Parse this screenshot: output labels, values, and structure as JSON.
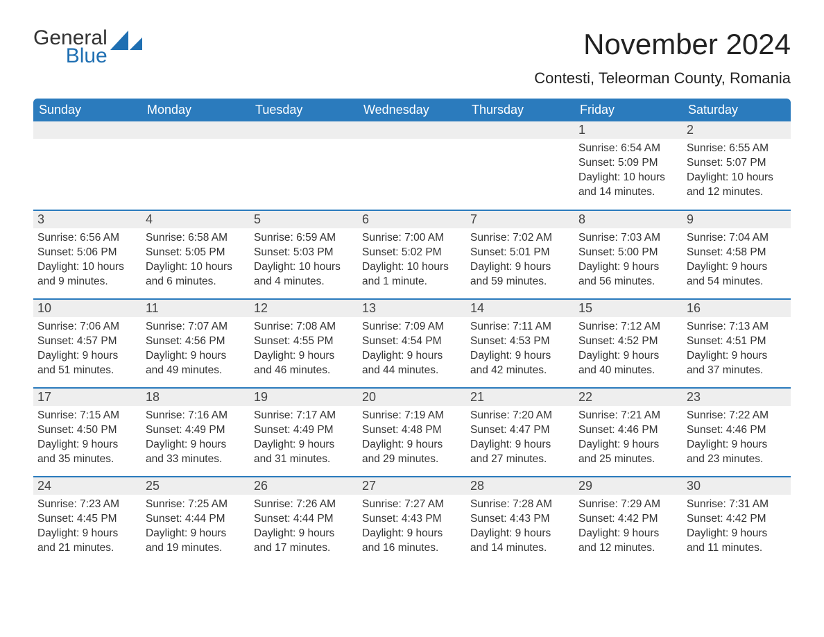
{
  "brand": {
    "general": "General",
    "blue": "Blue",
    "sail_color": "#1f6fb2"
  },
  "header": {
    "month_title": "November 2024",
    "location": "Contesti, Teleorman County, Romania"
  },
  "calendar": {
    "header_bg": "#2b7bbd",
    "header_fg": "#ffffff",
    "rule_color": "#2b7bbd",
    "daynum_bg": "#eeeeee",
    "text_color": "#333333",
    "font_family": "Arial",
    "columns": [
      "Sunday",
      "Monday",
      "Tuesday",
      "Wednesday",
      "Thursday",
      "Friday",
      "Saturday"
    ],
    "weeks": [
      [
        null,
        null,
        null,
        null,
        null,
        {
          "n": "1",
          "sunrise": "Sunrise: 6:54 AM",
          "sunset": "Sunset: 5:09 PM",
          "day1": "Daylight: 10 hours",
          "day2": "and 14 minutes."
        },
        {
          "n": "2",
          "sunrise": "Sunrise: 6:55 AM",
          "sunset": "Sunset: 5:07 PM",
          "day1": "Daylight: 10 hours",
          "day2": "and 12 minutes."
        }
      ],
      [
        {
          "n": "3",
          "sunrise": "Sunrise: 6:56 AM",
          "sunset": "Sunset: 5:06 PM",
          "day1": "Daylight: 10 hours",
          "day2": "and 9 minutes."
        },
        {
          "n": "4",
          "sunrise": "Sunrise: 6:58 AM",
          "sunset": "Sunset: 5:05 PM",
          "day1": "Daylight: 10 hours",
          "day2": "and 6 minutes."
        },
        {
          "n": "5",
          "sunrise": "Sunrise: 6:59 AM",
          "sunset": "Sunset: 5:03 PM",
          "day1": "Daylight: 10 hours",
          "day2": "and 4 minutes."
        },
        {
          "n": "6",
          "sunrise": "Sunrise: 7:00 AM",
          "sunset": "Sunset: 5:02 PM",
          "day1": "Daylight: 10 hours",
          "day2": "and 1 minute."
        },
        {
          "n": "7",
          "sunrise": "Sunrise: 7:02 AM",
          "sunset": "Sunset: 5:01 PM",
          "day1": "Daylight: 9 hours",
          "day2": "and 59 minutes."
        },
        {
          "n": "8",
          "sunrise": "Sunrise: 7:03 AM",
          "sunset": "Sunset: 5:00 PM",
          "day1": "Daylight: 9 hours",
          "day2": "and 56 minutes."
        },
        {
          "n": "9",
          "sunrise": "Sunrise: 7:04 AM",
          "sunset": "Sunset: 4:58 PM",
          "day1": "Daylight: 9 hours",
          "day2": "and 54 minutes."
        }
      ],
      [
        {
          "n": "10",
          "sunrise": "Sunrise: 7:06 AM",
          "sunset": "Sunset: 4:57 PM",
          "day1": "Daylight: 9 hours",
          "day2": "and 51 minutes."
        },
        {
          "n": "11",
          "sunrise": "Sunrise: 7:07 AM",
          "sunset": "Sunset: 4:56 PM",
          "day1": "Daylight: 9 hours",
          "day2": "and 49 minutes."
        },
        {
          "n": "12",
          "sunrise": "Sunrise: 7:08 AM",
          "sunset": "Sunset: 4:55 PM",
          "day1": "Daylight: 9 hours",
          "day2": "and 46 minutes."
        },
        {
          "n": "13",
          "sunrise": "Sunrise: 7:09 AM",
          "sunset": "Sunset: 4:54 PM",
          "day1": "Daylight: 9 hours",
          "day2": "and 44 minutes."
        },
        {
          "n": "14",
          "sunrise": "Sunrise: 7:11 AM",
          "sunset": "Sunset: 4:53 PM",
          "day1": "Daylight: 9 hours",
          "day2": "and 42 minutes."
        },
        {
          "n": "15",
          "sunrise": "Sunrise: 7:12 AM",
          "sunset": "Sunset: 4:52 PM",
          "day1": "Daylight: 9 hours",
          "day2": "and 40 minutes."
        },
        {
          "n": "16",
          "sunrise": "Sunrise: 7:13 AM",
          "sunset": "Sunset: 4:51 PM",
          "day1": "Daylight: 9 hours",
          "day2": "and 37 minutes."
        }
      ],
      [
        {
          "n": "17",
          "sunrise": "Sunrise: 7:15 AM",
          "sunset": "Sunset: 4:50 PM",
          "day1": "Daylight: 9 hours",
          "day2": "and 35 minutes."
        },
        {
          "n": "18",
          "sunrise": "Sunrise: 7:16 AM",
          "sunset": "Sunset: 4:49 PM",
          "day1": "Daylight: 9 hours",
          "day2": "and 33 minutes."
        },
        {
          "n": "19",
          "sunrise": "Sunrise: 7:17 AM",
          "sunset": "Sunset: 4:49 PM",
          "day1": "Daylight: 9 hours",
          "day2": "and 31 minutes."
        },
        {
          "n": "20",
          "sunrise": "Sunrise: 7:19 AM",
          "sunset": "Sunset: 4:48 PM",
          "day1": "Daylight: 9 hours",
          "day2": "and 29 minutes."
        },
        {
          "n": "21",
          "sunrise": "Sunrise: 7:20 AM",
          "sunset": "Sunset: 4:47 PM",
          "day1": "Daylight: 9 hours",
          "day2": "and 27 minutes."
        },
        {
          "n": "22",
          "sunrise": "Sunrise: 7:21 AM",
          "sunset": "Sunset: 4:46 PM",
          "day1": "Daylight: 9 hours",
          "day2": "and 25 minutes."
        },
        {
          "n": "23",
          "sunrise": "Sunrise: 7:22 AM",
          "sunset": "Sunset: 4:46 PM",
          "day1": "Daylight: 9 hours",
          "day2": "and 23 minutes."
        }
      ],
      [
        {
          "n": "24",
          "sunrise": "Sunrise: 7:23 AM",
          "sunset": "Sunset: 4:45 PM",
          "day1": "Daylight: 9 hours",
          "day2": "and 21 minutes."
        },
        {
          "n": "25",
          "sunrise": "Sunrise: 7:25 AM",
          "sunset": "Sunset: 4:44 PM",
          "day1": "Daylight: 9 hours",
          "day2": "and 19 minutes."
        },
        {
          "n": "26",
          "sunrise": "Sunrise: 7:26 AM",
          "sunset": "Sunset: 4:44 PM",
          "day1": "Daylight: 9 hours",
          "day2": "and 17 minutes."
        },
        {
          "n": "27",
          "sunrise": "Sunrise: 7:27 AM",
          "sunset": "Sunset: 4:43 PM",
          "day1": "Daylight: 9 hours",
          "day2": "and 16 minutes."
        },
        {
          "n": "28",
          "sunrise": "Sunrise: 7:28 AM",
          "sunset": "Sunset: 4:43 PM",
          "day1": "Daylight: 9 hours",
          "day2": "and 14 minutes."
        },
        {
          "n": "29",
          "sunrise": "Sunrise: 7:29 AM",
          "sunset": "Sunset: 4:42 PM",
          "day1": "Daylight: 9 hours",
          "day2": "and 12 minutes."
        },
        {
          "n": "30",
          "sunrise": "Sunrise: 7:31 AM",
          "sunset": "Sunset: 4:42 PM",
          "day1": "Daylight: 9 hours",
          "day2": "and 11 minutes."
        }
      ]
    ]
  }
}
